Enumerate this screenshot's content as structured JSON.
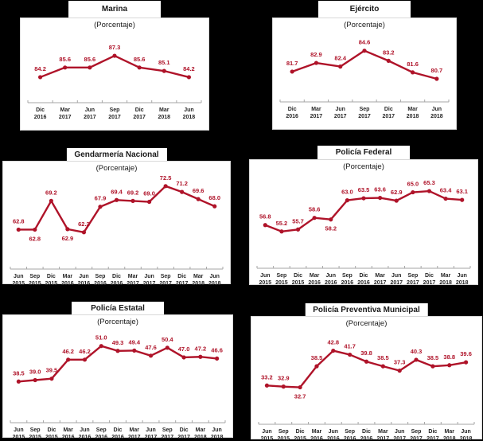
{
  "page": {
    "background": "#000000"
  },
  "style": {
    "accent": "#AF1329",
    "axis": "#A6A6A6",
    "label_text": "#262626",
    "panel_bg": "#FFFFFF",
    "panel_border": "#D9D9D9"
  },
  "chart_data": [
    {
      "id": "marina",
      "type": "line",
      "title": "Marina",
      "subtitle": "(Porcentaje)",
      "xlabel": "",
      "ylabel": "",
      "grid": false,
      "legend": "none",
      "categories": [
        "Dic 2016",
        "Mar 2017",
        "Jun 2017",
        "Sep 2017",
        "Dic 2017",
        "Mar 2018",
        "Jun 2018"
      ],
      "values": [
        84.2,
        85.6,
        85.6,
        87.3,
        85.6,
        85.1,
        84.2
      ],
      "labels_below": [],
      "ylim": [
        80.5,
        89.5
      ],
      "series_color": "#AF1329"
    },
    {
      "id": "ejercito",
      "type": "line",
      "title": "Ejército",
      "subtitle": "(Porcentaje)",
      "xlabel": "",
      "ylabel": "",
      "grid": false,
      "legend": "none",
      "categories": [
        "Dic 2016",
        "Mar 2017",
        "Jun 2017",
        "Sep 2017",
        "Dic 2017",
        "Mar 2018",
        "Jun 2018"
      ],
      "values": [
        81.7,
        82.9,
        82.4,
        84.6,
        83.2,
        81.6,
        80.7
      ],
      "labels_below": [],
      "ylim": [
        77.5,
        86.0
      ],
      "series_color": "#AF1329"
    },
    {
      "id": "gendarmeria-nacional",
      "type": "line",
      "title": "Gendarmería Nacional",
      "subtitle": "(Porcentaje)",
      "xlabel": "",
      "ylabel": "",
      "grid": false,
      "legend": "none",
      "categories": [
        "Jun 2015",
        "Sep 2015",
        "Dic 2015",
        "Mar 2016",
        "Jun 2016",
        "Sep 2016",
        "Dic 2016",
        "Mar 2017",
        "Jun 2017",
        "Sep 2017",
        "Dic 2017",
        "Mar 2018",
        "Jun 2018"
      ],
      "values": [
        62.8,
        62.8,
        69.2,
        62.9,
        62.2,
        67.9,
        69.4,
        69.2,
        69.0,
        72.5,
        71.2,
        69.6,
        68.0
      ],
      "labels_below": [
        1,
        3
      ],
      "ylim": [
        54.0,
        73.0
      ],
      "series_color": "#AF1329"
    },
    {
      "id": "policia-federal",
      "type": "line",
      "title": "Policía Federal",
      "subtitle": "(Porcentaje)",
      "xlabel": "",
      "ylabel": "",
      "grid": false,
      "legend": "none",
      "categories": [
        "Jun 2015",
        "Sep 2015",
        "Dic 2015",
        "Mar 2016",
        "Jun 2016",
        "Sep 2016",
        "Dic 2016",
        "Mar 2017",
        "Jun 2017",
        "Sep 2017",
        "Dic 2017",
        "Mar 2018",
        "Jun 2018"
      ],
      "values": [
        56.8,
        55.2,
        55.7,
        58.6,
        58.2,
        63.0,
        63.5,
        63.6,
        62.9,
        65.0,
        65.3,
        63.4,
        63.1
      ],
      "labels_below": [
        4
      ],
      "ylim": [
        46.0,
        67.5
      ],
      "series_color": "#AF1329"
    },
    {
      "id": "policia-estatal",
      "type": "line",
      "title": "Policía Estatal",
      "subtitle": "(Porcentaje)",
      "xlabel": "",
      "ylabel": "",
      "grid": false,
      "legend": "none",
      "categories": [
        "Jun 2015",
        "Sep 2015",
        "Dic 2015",
        "Mar 2016",
        "Jun 2016",
        "Sep 2016",
        "Dic 2016",
        "Mar 2017",
        "Jun 2017",
        "Sep 2017",
        "Dic 2017",
        "Mar 2018",
        "Jun 2018"
      ],
      "values": [
        38.5,
        39.0,
        39.5,
        46.2,
        46.2,
        51.0,
        49.3,
        49.4,
        47.6,
        50.4,
        47.0,
        47.2,
        46.6
      ],
      "labels_below": [],
      "ylim": [
        24.0,
        54.0
      ],
      "series_color": "#AF1329"
    },
    {
      "id": "policia-preventiva-municipal",
      "type": "line",
      "title": "Policía Preventiva Municipal",
      "subtitle": "(Porcentaje)",
      "xlabel": "",
      "ylabel": "",
      "grid": false,
      "legend": "none",
      "categories": [
        "Jun 2015",
        "Sep 2015",
        "Dic 2015",
        "Mar 2016",
        "Jun 2016",
        "Sep 2016",
        "Dic 2016",
        "Mar 2017",
        "Jun 2017",
        "Sep 2017",
        "Dic 2017",
        "Mar 2018",
        "Jun 2018"
      ],
      "values": [
        33.2,
        32.9,
        32.7,
        38.5,
        42.8,
        41.7,
        39.8,
        38.5,
        37.3,
        40.3,
        38.5,
        38.8,
        39.6
      ],
      "labels_below": [
        2
      ],
      "ylim": [
        22.5,
        46.0
      ],
      "series_color": "#AF1329"
    }
  ]
}
